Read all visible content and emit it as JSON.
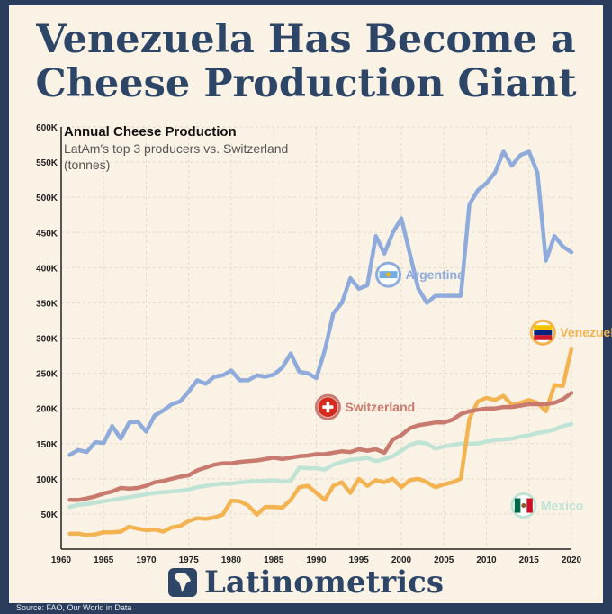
{
  "headline": {
    "line1": "Venezuela Has Become a",
    "line2": "Cheese Production Giant"
  },
  "brand": "Latinometrics",
  "source": "Source: FAO, Our World in Data",
  "colors": {
    "argentina": "#8eabdb",
    "venezuela": "#f4b351",
    "switzerland": "#c97a6f",
    "mexico": "#bfe4d6",
    "text": "#2d4667",
    "background": "#fbf2e6",
    "frame": "#2a3d5c"
  },
  "chart_data": {
    "type": "line",
    "title": "Annual Cheese Production",
    "subtitle_line1": "LatAm's top 3 producers vs. Switzerland",
    "subtitle_line2": "(tonnes)",
    "xlabel": "",
    "ylabel": "",
    "xlim": [
      1960,
      2020
    ],
    "ylim": [
      0,
      600000
    ],
    "x_ticks": [
      1960,
      1965,
      1970,
      1975,
      1980,
      1985,
      1990,
      1995,
      2000,
      2005,
      2010,
      2015,
      2020
    ],
    "y_ticks": [
      {
        "value": 50000,
        "label": "50K"
      },
      {
        "value": 100000,
        "label": "100K"
      },
      {
        "value": 150000,
        "label": "150K"
      },
      {
        "value": 200000,
        "label": "200K"
      },
      {
        "value": 250000,
        "label": "250K"
      },
      {
        "value": 300000,
        "label": "300K"
      },
      {
        "value": 350000,
        "label": "350K"
      },
      {
        "value": 400000,
        "label": "400K"
      },
      {
        "value": 450000,
        "label": "450K"
      },
      {
        "value": 500000,
        "label": "500K"
      },
      {
        "value": 550000,
        "label": "550K"
      },
      {
        "value": 600000,
        "label": "600K"
      }
    ],
    "grid": true,
    "x": [
      1961,
      1962,
      1963,
      1964,
      1965,
      1966,
      1967,
      1968,
      1969,
      1970,
      1971,
      1972,
      1973,
      1974,
      1975,
      1976,
      1977,
      1978,
      1979,
      1980,
      1981,
      1982,
      1983,
      1984,
      1985,
      1986,
      1987,
      1988,
      1989,
      1990,
      1991,
      1992,
      1993,
      1994,
      1995,
      1996,
      1997,
      1998,
      1999,
      2000,
      2001,
      2002,
      2003,
      2004,
      2005,
      2006,
      2007,
      2008,
      2009,
      2010,
      2011,
      2012,
      2013,
      2014,
      2015,
      2016,
      2017,
      2018,
      2019,
      2020
    ],
    "series": [
      {
        "name": "Argentina",
        "color": "#8eabdb",
        "label_side": "top",
        "values": [
          134000,
          141000,
          138000,
          152000,
          151000,
          175000,
          157000,
          180000,
          181000,
          167000,
          190000,
          197000,
          206000,
          210000,
          224000,
          240000,
          235000,
          245000,
          247000,
          254000,
          240000,
          240000,
          247000,
          245000,
          248000,
          258000,
          278000,
          252000,
          250000,
          243000,
          283000,
          335000,
          350000,
          385000,
          370000,
          375000,
          445000,
          420000,
          450000,
          470000,
          420000,
          370000,
          350000,
          360000,
          360000,
          360000,
          360000,
          490000,
          510000,
          520000,
          535000,
          565000,
          545000,
          560000,
          565000,
          535000,
          410000,
          445000,
          430000,
          422000
        ]
      },
      {
        "name": "Venezuela",
        "color": "#f4b351",
        "label_side": "right",
        "values": [
          22000,
          22000,
          20000,
          21000,
          24000,
          24000,
          25000,
          32000,
          29000,
          27000,
          28000,
          25000,
          31000,
          33000,
          40000,
          44000,
          43000,
          45000,
          49000,
          69000,
          68000,
          62000,
          49000,
          60000,
          60000,
          59000,
          70000,
          88000,
          90000,
          80000,
          70000,
          90000,
          95000,
          80000,
          100000,
          90000,
          98000,
          95000,
          100000,
          88000,
          98000,
          100000,
          95000,
          88000,
          92000,
          95000,
          100000,
          185000,
          210000,
          215000,
          212000,
          218000,
          205000,
          208000,
          212000,
          208000,
          196000,
          233000,
          232000,
          285000
        ]
      },
      {
        "name": "Switzerland",
        "color": "#c97a6f",
        "label_side": "left",
        "values": [
          70000,
          70000,
          72000,
          75000,
          79000,
          82000,
          87000,
          86000,
          87000,
          90000,
          95000,
          97000,
          100000,
          103000,
          105000,
          112000,
          116000,
          120000,
          122000,
          122000,
          124000,
          125000,
          126000,
          128000,
          130000,
          128000,
          130000,
          132000,
          133000,
          135000,
          135000,
          137000,
          139000,
          138000,
          142000,
          140000,
          142000,
          137000,
          156000,
          162000,
          172000,
          176000,
          178000,
          180000,
          180000,
          184000,
          192000,
          196000,
          198000,
          200000,
          200000,
          202000,
          202000,
          204000,
          206000,
          206000,
          206000,
          208000,
          213000,
          222000
        ]
      },
      {
        "name": "Mexico",
        "color": "#bfe4d6",
        "label_side": "bottom",
        "values": [
          60000,
          63000,
          64000,
          66000,
          68000,
          70000,
          72000,
          74000,
          76000,
          78000,
          80000,
          81000,
          82000,
          83000,
          85000,
          88000,
          90000,
          92000,
          93000,
          93000,
          95000,
          96000,
          97000,
          97000,
          98000,
          96000,
          97000,
          116000,
          115000,
          115000,
          113000,
          120000,
          124000,
          127000,
          128000,
          130000,
          125000,
          128000,
          132000,
          140000,
          148000,
          152000,
          150000,
          143000,
          146000,
          148000,
          150000,
          150000,
          150000,
          153000,
          155000,
          156000,
          157000,
          160000,
          162000,
          165000,
          167000,
          170000,
          175000,
          178000
        ]
      }
    ]
  }
}
